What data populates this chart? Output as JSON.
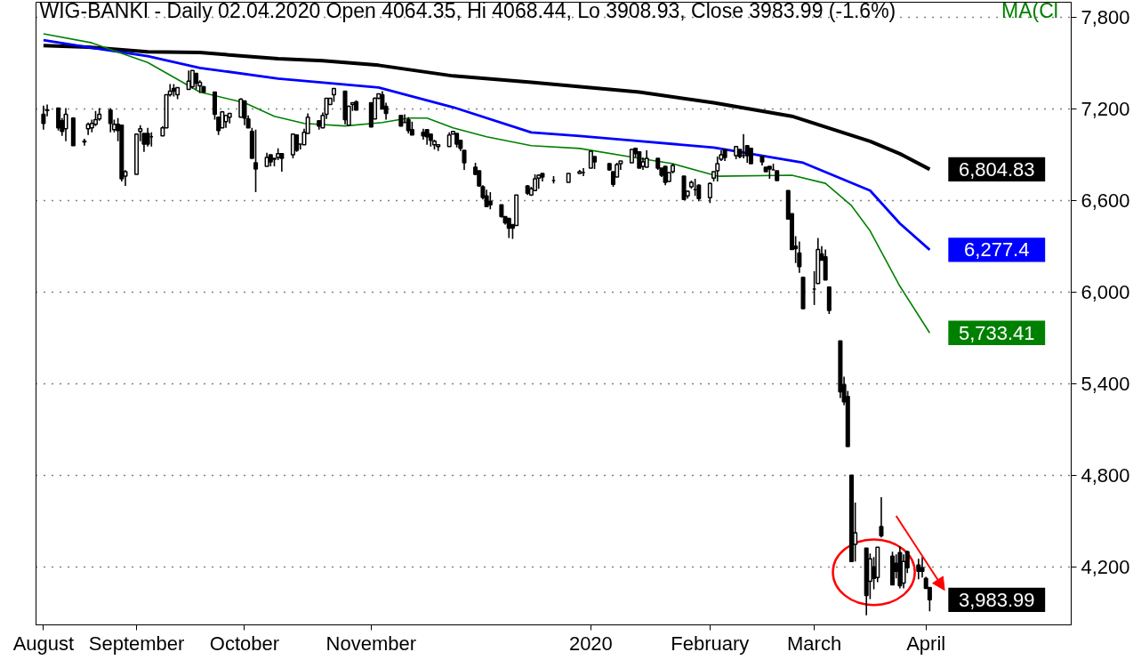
{
  "chart_data": {
    "type": "candlestick",
    "title": "WIG-BANKI - Daily 02.04.2020 Open 4064.35, Hi 4068.44, Lo 3908.93, Close 3983.99 (-1.6%)",
    "x": [
      "2019-08-08",
      "2019-08-09",
      "2019-08-12",
      "2019-08-13",
      "2019-08-14",
      "2019-08-16",
      "2019-08-19",
      "2019-08-20",
      "2019-08-21",
      "2019-08-22",
      "2019-08-23",
      "2019-08-26",
      "2019-08-27",
      "2019-08-28",
      "2019-08-29",
      "2019-08-30",
      "2019-09-02",
      "2019-09-03",
      "2019-09-04",
      "2019-09-05",
      "2019-09-06",
      "2019-09-09",
      "2019-09-10",
      "2019-09-11",
      "2019-09-12",
      "2019-09-13",
      "2019-09-16",
      "2019-09-17",
      "2019-09-18",
      "2019-09-19",
      "2019-09-20",
      "2019-09-23",
      "2019-09-24",
      "2019-09-25",
      "2019-09-26",
      "2019-09-27",
      "2019-09-30",
      "2019-10-01",
      "2019-10-02",
      "2019-10-03",
      "2019-10-04",
      "2019-10-07",
      "2019-10-08",
      "2019-10-09",
      "2019-10-10",
      "2019-10-11",
      "2019-10-14",
      "2019-10-15",
      "2019-10-16",
      "2019-10-17",
      "2019-10-18",
      "2019-10-21",
      "2019-10-22",
      "2019-10-23",
      "2019-10-24",
      "2019-10-25",
      "2019-10-28",
      "2019-10-29",
      "2019-10-30",
      "2019-10-31",
      "2019-11-04",
      "2019-11-05",
      "2019-11-06",
      "2019-11-07",
      "2019-11-08",
      "2019-11-12",
      "2019-11-13",
      "2019-11-14",
      "2019-11-15",
      "2019-11-18",
      "2019-11-19",
      "2019-11-20",
      "2019-11-21",
      "2019-11-22",
      "2019-11-25",
      "2019-11-26",
      "2019-11-27",
      "2019-11-28",
      "2019-11-29",
      "2019-12-02",
      "2019-12-03",
      "2019-12-04",
      "2019-12-05",
      "2019-12-06",
      "2019-12-09",
      "2019-12-10",
      "2019-12-11",
      "2019-12-12",
      "2019-12-13",
      "2019-12-16",
      "2019-12-17",
      "2019-12-18",
      "2019-12-19",
      "2019-12-20",
      "2019-12-23",
      "2019-12-27",
      "2019-12-30",
      "2019-12-31",
      "2020-01-02",
      "2020-01-03",
      "2020-01-07",
      "2020-01-08",
      "2020-01-09",
      "2020-01-10",
      "2020-01-13",
      "2020-01-14",
      "2020-01-15",
      "2020-01-16",
      "2020-01-17",
      "2020-01-20",
      "2020-01-21",
      "2020-01-22",
      "2020-01-23",
      "2020-01-24",
      "2020-01-27",
      "2020-01-28",
      "2020-01-29",
      "2020-01-30",
      "2020-01-31",
      "2020-02-03",
      "2020-02-04",
      "2020-02-05",
      "2020-02-06",
      "2020-02-07",
      "2020-02-10",
      "2020-02-11",
      "2020-02-12",
      "2020-02-13",
      "2020-02-14",
      "2020-02-17",
      "2020-02-18",
      "2020-02-19",
      "2020-02-20",
      "2020-02-21",
      "2020-02-24",
      "2020-02-25",
      "2020-02-26",
      "2020-02-27",
      "2020-02-28",
      "2020-03-02",
      "2020-03-03",
      "2020-03-04",
      "2020-03-05",
      "2020-03-06",
      "2020-03-09",
      "2020-03-10",
      "2020-03-11",
      "2020-03-12",
      "2020-03-13",
      "2020-03-16",
      "2020-03-17",
      "2020-03-18",
      "2020-03-19",
      "2020-03-20",
      "2020-03-23",
      "2020-03-24",
      "2020-03-25",
      "2020-03-26",
      "2020-03-27",
      "2020-03-30",
      "2020-03-31",
      "2020-04-01",
      "2020-04-02"
    ],
    "ohlc": [
      [
        7165,
        7223,
        7065,
        7106
      ],
      [
        7190,
        7229,
        7153,
        7195
      ],
      [
        7206,
        7206,
        7059,
        7077
      ],
      [
        7124,
        7141,
        7024,
        7054
      ],
      [
        7071,
        7206,
        6989,
        7165
      ],
      [
        7141,
        7147,
        6960,
        6960
      ],
      [
        6990,
        7006,
        6960,
        6985
      ],
      [
        7071,
        7112,
        7030,
        7100
      ],
      [
        7077,
        7130,
        7047,
        7106
      ],
      [
        7100,
        7188,
        7089,
        7130
      ],
      [
        7135,
        7206,
        7124,
        7165
      ],
      [
        7194,
        7206,
        7047,
        7106
      ],
      [
        7065,
        7130,
        7047,
        7100
      ],
      [
        7100,
        7141,
        6989,
        7059
      ],
      [
        7094,
        7094,
        6725,
        6743
      ],
      [
        6760,
        6800,
        6696,
        6790
      ],
      [
        6772,
        7036,
        6772,
        7036
      ],
      [
        7053,
        7094,
        6989,
        7071
      ],
      [
        7041,
        7041,
        6919,
        6971
      ],
      [
        7041,
        7077,
        6954,
        6971
      ],
      [
        7018,
        7047,
        6954,
        7018
      ],
      [
        7024,
        7089,
        7024,
        7077
      ],
      [
        7077,
        7294,
        7077,
        7294
      ],
      [
        7294,
        7364,
        7282,
        7317
      ],
      [
        7335,
        7364,
        7282,
        7317
      ],
      [
        7294,
        7341,
        7264,
        7341
      ],
      [
        7329,
        7452,
        7329,
        7382
      ],
      [
        7347,
        7452,
        7335,
        7452
      ],
      [
        7434,
        7434,
        7329,
        7370
      ],
      [
        7352,
        7388,
        7305,
        7376
      ],
      [
        7347,
        7350,
        7305,
        7311
      ],
      [
        7311,
        7311,
        7130,
        7165
      ],
      [
        7147,
        7147,
        7030,
        7059
      ],
      [
        7077,
        7188,
        7077,
        7182
      ],
      [
        7118,
        7159,
        7077,
        7159
      ],
      [
        7147,
        7171,
        7106,
        7171
      ],
      [
        7147,
        7270,
        7147,
        7264
      ],
      [
        7253,
        7253,
        7094,
        7141
      ],
      [
        7135,
        7159,
        7077,
        7077
      ],
      [
        7053,
        7077,
        6877,
        6877
      ],
      [
        6848,
        7065,
        6655,
        6807
      ],
      [
        6825,
        6913,
        6825,
        6883
      ],
      [
        6900,
        6900,
        6825,
        6854
      ],
      [
        6877,
        6877,
        6825,
        6871
      ],
      [
        6883,
        6942,
        6866,
        6907
      ],
      [
        6907,
        6907,
        6790,
        6877
      ],
      [
        6901,
        7036,
        6877,
        7036
      ],
      [
        7030,
        7030,
        6919,
        6930
      ],
      [
        6971,
        6971,
        6936,
        6971
      ],
      [
        6966,
        7071,
        6966,
        7047
      ],
      [
        7041,
        7171,
        7041,
        7147
      ],
      [
        7124,
        7124,
        7065,
        7089
      ],
      [
        7077,
        7177,
        7077,
        7159
      ],
      [
        7165,
        7270,
        7135,
        7270
      ],
      [
        7229,
        7270,
        7229,
        7270
      ],
      [
        7294,
        7335,
        7247,
        7335
      ],
      [
        7317,
        7317,
        7100,
        7130
      ],
      [
        7094,
        7223,
        7094,
        7218
      ],
      [
        7229,
        7241,
        7188,
        7241
      ],
      [
        7247,
        7258,
        7194,
        7194
      ],
      [
        7241,
        7241,
        7083,
        7083
      ],
      [
        7135,
        7276,
        7135,
        7270
      ],
      [
        7270,
        7300,
        7264,
        7300
      ],
      [
        7294,
        7317,
        7200,
        7200
      ],
      [
        7218,
        7241,
        7130,
        7171
      ],
      [
        7159,
        7159,
        7089,
        7089
      ],
      [
        7112,
        7165,
        7112,
        7112
      ],
      [
        7130,
        7147,
        7041,
        7059
      ],
      [
        7065,
        7118,
        7030,
        7030
      ],
      [
        7047,
        7071,
        7000,
        7024
      ],
      [
        7065,
        7065,
        6966,
        7018
      ],
      [
        7036,
        7036,
        6954,
        6995
      ],
      [
        6966,
        7000,
        6936,
        6989
      ],
      [
        6954,
        6966,
        6925,
        6966
      ],
      [
        6954,
        7047,
        6954,
        7030
      ],
      [
        7036,
        7053,
        7036,
        7053
      ],
      [
        7041,
        7041,
        6948,
        6971
      ],
      [
        6995,
        6995,
        6925,
        6942
      ],
      [
        6930,
        6930,
        6801,
        6848
      ],
      [
        6819,
        6848,
        6766,
        6772
      ],
      [
        6795,
        6795,
        6690,
        6696
      ],
      [
        6690,
        6701,
        6608,
        6620
      ],
      [
        6631,
        6672,
        6561,
        6561
      ],
      [
        6596,
        6655,
        6543,
        6573
      ],
      [
        6573,
        6573,
        6490,
        6496
      ],
      [
        6496,
        6496,
        6443,
        6455
      ],
      [
        6484,
        6484,
        6355,
        6420
      ],
      [
        6443,
        6443,
        6349,
        6420
      ],
      [
        6437,
        6637,
        6437,
        6637
      ],
      [
        6696,
        6701,
        6637,
        6649
      ],
      [
        6637,
        6690,
        6631,
        6678
      ],
      [
        6666,
        6772,
        6666,
        6743
      ],
      [
        6748,
        6772,
        6678,
        6766
      ],
      [
        6778,
        6778,
        6725,
        6754
      ],
      [
        6731,
        6760,
        6713,
        6731
      ],
      [
        6719,
        6778,
        6719,
        6778
      ],
      [
        6778,
        6801,
        6778,
        6790
      ],
      [
        6784,
        6813,
        6760,
        6784
      ],
      [
        6813,
        6924,
        6813,
        6924
      ],
      [
        6889,
        6889,
        6807,
        6854
      ],
      [
        6842,
        6848,
        6795,
        6801
      ],
      [
        6790,
        6790,
        6690,
        6707
      ],
      [
        6754,
        6848,
        6754,
        6836
      ],
      [
        6842,
        6860,
        6801,
        6860
      ],
      [
        6848,
        6936,
        6848,
        6936
      ],
      [
        6942,
        6942,
        6883,
        6907
      ],
      [
        6919,
        6919,
        6813,
        6813
      ],
      [
        6825,
        6883,
        6801,
        6854
      ],
      [
        6819,
        6930,
        6819,
        6877
      ],
      [
        6877,
        6877,
        6801,
        6813
      ],
      [
        6813,
        6813,
        6754,
        6766
      ],
      [
        6825,
        6825,
        6701,
        6719
      ],
      [
        6725,
        6784,
        6725,
        6784
      ],
      [
        6790,
        6842,
        6778,
        6830
      ],
      [
        6760,
        6760,
        6608,
        6608
      ],
      [
        6631,
        6666,
        6614,
        6661
      ],
      [
        6690,
        6731,
        6678,
        6719
      ],
      [
        6672,
        6743,
        6631,
        6672
      ],
      [
        6701,
        6707,
        6596,
        6614
      ],
      [
        6619,
        6719,
        6584,
        6713
      ],
      [
        6748,
        6790,
        6725,
        6790
      ],
      [
        6796,
        6889,
        6725,
        6842
      ],
      [
        6871,
        6930,
        6860,
        6901
      ],
      [
        6936,
        6936,
        6860,
        6883
      ],
      [
        6895,
        6954,
        6871,
        6954
      ],
      [
        6936,
        6936,
        6877,
        6889
      ],
      [
        6895,
        7036,
        6877,
        6895
      ],
      [
        6960,
        6960,
        6848,
        6895
      ],
      [
        6942,
        6942,
        6842,
        6842
      ],
      [
        6889,
        6889,
        6830,
        6854
      ],
      [
        6819,
        6819,
        6790,
        6790
      ],
      [
        6825,
        6825,
        6743,
        6807
      ],
      [
        6801,
        6842,
        6801,
        6801
      ],
      [
        6795,
        6795,
        6731,
        6731
      ],
      [
        6666,
        6666,
        6479,
        6479
      ],
      [
        6514,
        6514,
        6279,
        6279
      ],
      [
        6302,
        6367,
        6191,
        6285
      ],
      [
        6256,
        6332,
        6127,
        6168
      ],
      [
        6097,
        6097,
        5892,
        5892
      ],
      [
        6021,
        6138,
        5916,
        6021
      ],
      [
        6056,
        6355,
        6056,
        6279
      ],
      [
        6250,
        6302,
        6209,
        6209
      ],
      [
        6232,
        6279,
        6080,
        6080
      ],
      [
        6033,
        6033,
        5857,
        5880
      ],
      [
        5681,
        5681,
        5306,
        5347
      ],
      [
        5394,
        5446,
        5259,
        5282
      ],
      [
        5317,
        5353,
        4989,
        4989
      ],
      [
        4801,
        4801,
        4235,
        4235
      ],
      [
        4347,
        4622,
        4235,
        4423
      ],
      [
        4323,
        4323,
        3883,
        4012
      ],
      [
        4106,
        4288,
        3989,
        4253
      ],
      [
        4200,
        4265,
        4053,
        4124
      ],
      [
        4130,
        4329,
        4100,
        4329
      ],
      [
        4464,
        4657,
        4393,
        4405
      ],
      [
        4270,
        4300,
        4083,
        4083
      ],
      [
        4223,
        4282,
        4124,
        4171
      ],
      [
        4294,
        4335,
        4059,
        4077
      ],
      [
        4094,
        4282,
        4059,
        4235
      ],
      [
        4300,
        4306,
        4159,
        4194
      ],
      [
        4212,
        4253,
        4118,
        4171
      ],
      [
        4194,
        4265,
        4130,
        4171
      ],
      [
        4124,
        4135,
        4059,
        4059
      ],
      [
        4064.35,
        4068.44,
        3908.93,
        3983.99
      ]
    ],
    "series": [
      {
        "type": "line",
        "color": "#000000",
        "x": [
          "2019-08-08",
          "2019-08-20",
          "2019-09-05",
          "2019-09-19",
          "2019-10-10",
          "2019-10-22",
          "2019-11-06",
          "2019-11-26",
          "2019-12-17",
          "2020-01-15",
          "2020-02-04",
          "2020-02-25",
          "2020-03-17",
          "2020-03-25",
          "2020-04-02"
        ],
        "values": [
          7616,
          7605,
          7575,
          7570,
          7530,
          7517,
          7487,
          7417,
          7376,
          7311,
          7241,
          7153,
          6989,
          6907,
          6804.83
        ]
      },
      {
        "type": "line",
        "color": "#0000ff",
        "x": [
          "2019-08-08",
          "2019-08-20",
          "2019-09-05",
          "2019-09-19",
          "2019-10-10",
          "2019-11-06",
          "2019-11-26",
          "2019-12-17",
          "2019-12-30",
          "2020-01-15",
          "2020-02-04",
          "2020-02-28",
          "2020-03-17",
          "2020-03-25",
          "2020-04-02"
        ],
        "values": [
          7652,
          7605,
          7546,
          7470,
          7400,
          7341,
          7212,
          7047,
          7024,
          6990,
          6948,
          6848,
          6666,
          6450,
          6277.4
        ]
      },
      {
        "type": "line",
        "name": "MA(Cl",
        "color": "#008000",
        "x": [
          "2019-08-08",
          "2019-08-21",
          "2019-09-05",
          "2019-09-19",
          "2019-10-01",
          "2019-10-09",
          "2019-10-17",
          "2019-10-28",
          "2019-11-07",
          "2019-11-14",
          "2019-11-19",
          "2019-11-26",
          "2019-12-05",
          "2019-12-17",
          "2019-12-30",
          "2020-01-15",
          "2020-01-24",
          "2020-02-05",
          "2020-02-25",
          "2020-03-05",
          "2020-03-12",
          "2020-03-17",
          "2020-03-25",
          "2020-04-02"
        ],
        "values": [
          7693,
          7634,
          7505,
          7311,
          7241,
          7153,
          7106,
          7089,
          7112,
          7141,
          7141,
          7077,
          7018,
          6960,
          6942,
          6877,
          6842,
          6760,
          6766,
          6713,
          6567,
          6402,
          6039,
          5733.41
        ]
      }
    ],
    "annotations": [
      {
        "text": "6,804.83",
        "x": "2020-04-02",
        "y": 6804.83
      },
      {
        "text": "6,277.4",
        "x": "2020-04-02",
        "y": 6277.4
      },
      {
        "text": "5,733.41",
        "x": "2020-04-02",
        "y": 5733.41
      },
      {
        "text": "3,983.99",
        "x": "2020-04-02",
        "y": 3983.99
      }
    ],
    "xlim": [
      "2019-08-06",
      "2020-05-10"
    ],
    "xticks": [
      {
        "value": "2019-08-08",
        "label": "August"
      },
      {
        "value": "2019-09-02",
        "label": "September"
      },
      {
        "value": "2019-10-01",
        "label": "October"
      },
      {
        "value": "2019-11-04",
        "label": "November"
      },
      {
        "value": "2020-01-02",
        "label": "2020"
      },
      {
        "value": "2020-02-03",
        "label": "February"
      },
      {
        "value": "2020-03-02",
        "label": "March"
      },
      {
        "value": "2020-04-01",
        "label": "April"
      }
    ],
    "ylim": [
      3820,
      7900
    ],
    "yticks": [
      {
        "value": 4200,
        "label": "4,200"
      },
      {
        "value": 4800,
        "label": "4,800"
      },
      {
        "value": 5400,
        "label": "5,400"
      },
      {
        "value": 6000,
        "label": "6,000"
      },
      {
        "value": 6600,
        "label": "6,600"
      },
      {
        "value": 7200,
        "label": "7,200"
      },
      {
        "value": 7800,
        "label": "7,800"
      }
    ],
    "grid": "y"
  }
}
